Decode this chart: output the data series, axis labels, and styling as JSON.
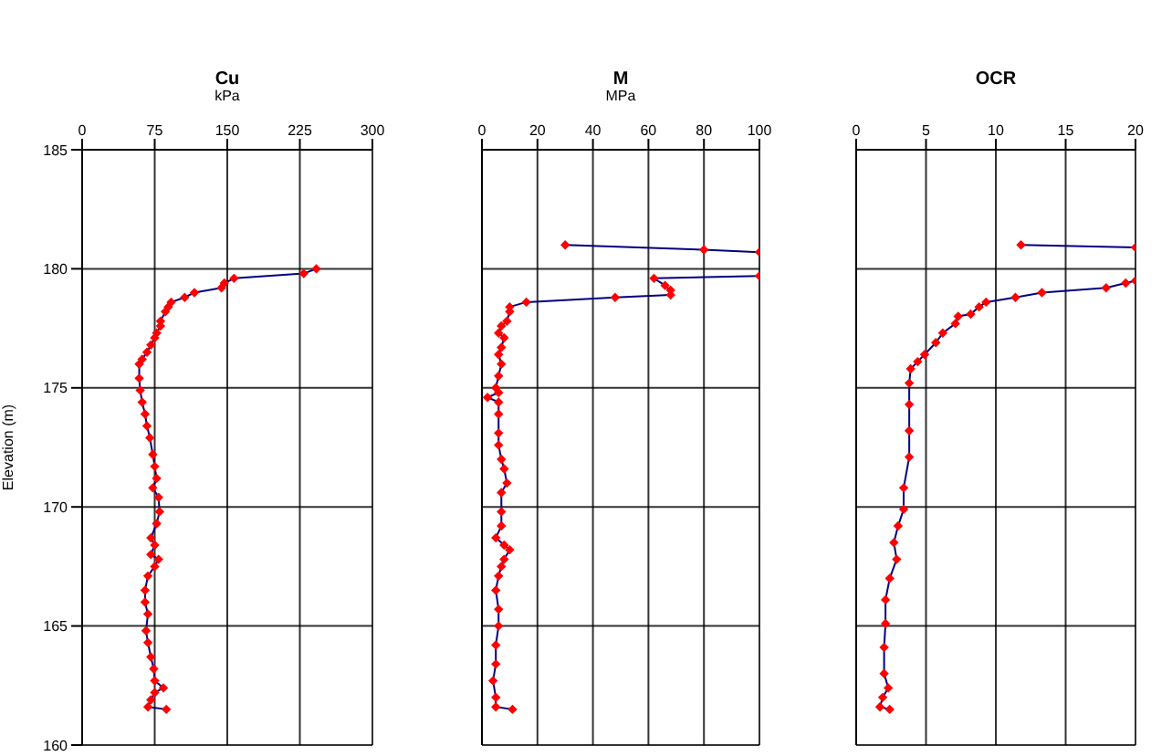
{
  "chart_data": [
    {
      "type": "line",
      "title": "Cu",
      "xlabel": "kPa",
      "ylabel": "Elevation (m)",
      "xlim": [
        0,
        300
      ],
      "xticks": [
        0,
        75,
        150,
        225,
        300
      ],
      "ylim": [
        160,
        185
      ],
      "yticks": [
        160,
        165,
        170,
        175,
        180,
        185
      ],
      "grid": true,
      "marker": "diamond",
      "line_style": "solid",
      "series": [
        {
          "color": "#ff0000",
          "x": [
            242,
            229,
            157,
            147,
            144,
            116,
            106,
            92,
            89,
            86,
            81,
            81,
            77,
            75,
            71,
            67,
            62,
            59,
            59,
            60,
            62,
            65,
            67,
            70,
            73,
            75,
            77,
            73,
            79,
            80,
            77,
            71,
            75,
            71,
            79,
            75,
            68,
            65,
            65,
            68,
            66,
            68,
            71,
            74,
            75,
            84,
            75,
            71,
            68,
            87
          ],
          "values": [
            180.0,
            179.8,
            179.6,
            179.4,
            179.2,
            179.0,
            178.8,
            178.6,
            178.4,
            178.2,
            177.8,
            177.6,
            177.3,
            177.1,
            176.8,
            176.5,
            176.2,
            176.0,
            175.4,
            174.9,
            174.4,
            173.9,
            173.4,
            172.9,
            172.2,
            171.7,
            171.2,
            170.8,
            170.4,
            169.8,
            169.3,
            168.7,
            168.4,
            168.0,
            167.8,
            167.5,
            167.1,
            166.5,
            166.0,
            165.5,
            164.8,
            164.3,
            163.7,
            163.2,
            162.7,
            162.4,
            162.2,
            161.9,
            161.6,
            161.5
          ]
        }
      ]
    },
    {
      "type": "line",
      "title": "M",
      "xlabel": "MPa",
      "xlim": [
        0,
        100
      ],
      "xticks": [
        0,
        20,
        40,
        60,
        80,
        100
      ],
      "ylim": [
        160,
        185
      ],
      "yticks": [
        160,
        165,
        170,
        175,
        180,
        185
      ],
      "tick_labels": "x",
      "grid": true,
      "marker": "diamond",
      "line_style": "solid",
      "series": [
        {
          "color": "#ff0000",
          "x": [
            30,
            80,
            100,
            null,
            100,
            62,
            66,
            68,
            68,
            48,
            16,
            10,
            10,
            9,
            7,
            6,
            8,
            7,
            6,
            7,
            6,
            5,
            6,
            2,
            6,
            6,
            6,
            6,
            7,
            8,
            9,
            7,
            7,
            7,
            5,
            8,
            10,
            8,
            7,
            6,
            5,
            6,
            6,
            5,
            5,
            4,
            5,
            5,
            11
          ],
          "values": [
            181.0,
            180.8,
            180.7,
            null,
            179.7,
            179.6,
            179.3,
            179.1,
            178.9,
            178.8,
            178.6,
            178.4,
            178.2,
            177.8,
            177.6,
            177.3,
            177.1,
            176.7,
            176.4,
            176.0,
            175.5,
            175.0,
            174.8,
            174.6,
            174.4,
            173.9,
            173.1,
            172.6,
            172.0,
            171.6,
            171.0,
            170.6,
            169.8,
            169.2,
            168.7,
            168.4,
            168.2,
            167.8,
            167.5,
            167.1,
            166.5,
            165.7,
            165.0,
            164.2,
            163.4,
            162.7,
            162.0,
            161.6,
            161.5
          ]
        }
      ]
    },
    {
      "type": "line",
      "title": "OCR",
      "xlim": [
        0,
        20
      ],
      "xticks": [
        0,
        5,
        10,
        15,
        20
      ],
      "ylim": [
        160,
        185
      ],
      "yticks": [
        160,
        165,
        170,
        175,
        180,
        185
      ],
      "tick_labels": "x",
      "grid": true,
      "marker": "diamond",
      "line_style": "solid",
      "series": [
        {
          "color": "#ff0000",
          "x": [
            11.8,
            20,
            null,
            20,
            19.3,
            17.9,
            13.3,
            11.4,
            9.3,
            8.8,
            8.2,
            7.3,
            7.1,
            6.2,
            5.7,
            4.9,
            4.4,
            3.9,
            3.8,
            3.8,
            3.8,
            3.8,
            3.4,
            3.4,
            3.0,
            2.7,
            2.9,
            2.4,
            2.1,
            2.1,
            2.0,
            2.0,
            2.3,
            1.9,
            1.7,
            2.4
          ],
          "values": [
            181.0,
            180.9,
            null,
            179.5,
            179.4,
            179.2,
            179.0,
            178.8,
            178.6,
            178.4,
            178.1,
            178.0,
            177.7,
            177.3,
            176.9,
            176.4,
            176.1,
            175.8,
            175.2,
            174.3,
            173.2,
            172.1,
            170.8,
            169.9,
            169.2,
            168.5,
            167.8,
            167.0,
            166.1,
            165.1,
            164.1,
            163.0,
            162.4,
            162.0,
            161.6,
            161.5
          ]
        }
      ]
    }
  ]
}
